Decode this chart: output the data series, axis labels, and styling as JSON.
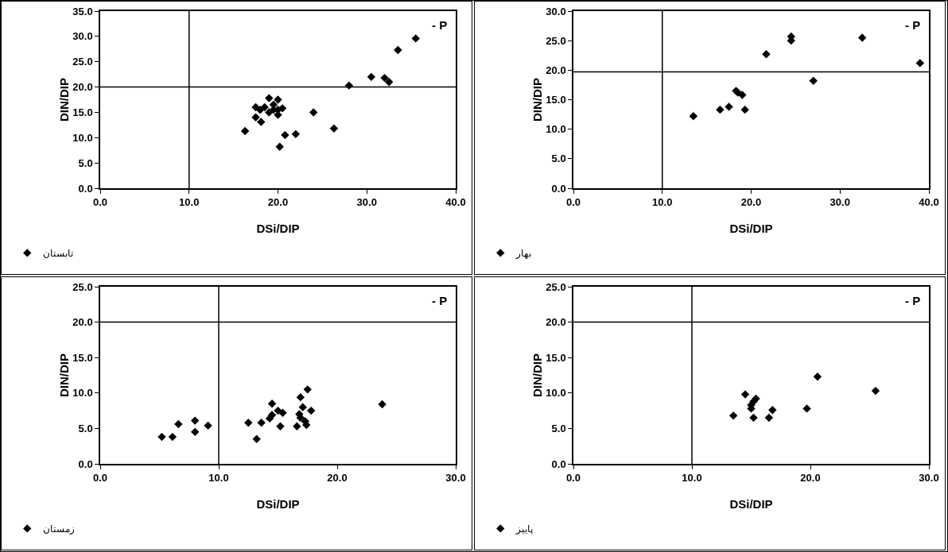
{
  "chart_data": [
    {
      "type": "scatter",
      "xlabel": "DSi/DIP",
      "ylabel": "DIN/DIP",
      "annotations": [
        "- P"
      ],
      "legend": "bottom left",
      "marker": "diamond",
      "grid": false,
      "xlim": [
        0,
        40
      ],
      "xticks": [
        {
          "value": 0,
          "label": "0.0"
        },
        {
          "value": 10,
          "label": "10.0"
        },
        {
          "value": 20,
          "label": "20.0"
        },
        {
          "value": 30,
          "label": "30.0"
        },
        {
          "value": 40,
          "label": "40.0"
        }
      ],
      "ylim": [
        0,
        35
      ],
      "yticks": [
        {
          "value": 0,
          "label": "0.0"
        },
        {
          "value": 5,
          "label": "5.0"
        },
        {
          "value": 10,
          "label": "10.0"
        },
        {
          "value": 15,
          "label": "15.0"
        },
        {
          "value": 20,
          "label": "20.0"
        },
        {
          "value": 25,
          "label": "25.0"
        },
        {
          "value": 30,
          "label": "30.0"
        },
        {
          "value": 35,
          "label": "35.0"
        }
      ],
      "ref_lines": [
        {
          "axis": "x",
          "value": 10,
          "color": "#000000"
        },
        {
          "axis": "y",
          "value": 20,
          "color": "#000000"
        }
      ],
      "series": [
        {
          "name": "تابستان",
          "color": "#000000",
          "x": [
            16.3,
            17.5,
            18.1,
            17.5,
            18,
            18.5,
            19,
            19,
            19.5,
            19.5,
            20,
            20,
            20,
            20.5,
            20.2,
            20.8,
            22,
            24,
            26.3,
            28,
            30.5,
            32,
            32.5,
            33.5,
            35.5
          ],
          "values": [
            11.3,
            14,
            13.1,
            16,
            15.5,
            16,
            15,
            17.8,
            15.5,
            16.5,
            17.5,
            15.5,
            14.5,
            15.8,
            8.2,
            10.5,
            10.7,
            15,
            11.8,
            20.3,
            22,
            21.8,
            21,
            27.3,
            29.6
          ]
        }
      ]
    },
    {
      "type": "scatter",
      "xlabel": "DSi/DIP",
      "ylabel": "DIN/DIP",
      "annotations": [
        "- P"
      ],
      "legend": "bottom left",
      "marker": "diamond",
      "grid": false,
      "xlim": [
        0,
        40
      ],
      "xticks": [
        {
          "value": 0,
          "label": "0.0"
        },
        {
          "value": 10,
          "label": "10.0"
        },
        {
          "value": 20,
          "label": "20.0"
        },
        {
          "value": 30,
          "label": "30.0"
        },
        {
          "value": 40,
          "label": "40.0"
        }
      ],
      "ylim": [
        0,
        30
      ],
      "yticks": [
        {
          "value": 0,
          "label": "0.0"
        },
        {
          "value": 5,
          "label": "5.0"
        },
        {
          "value": 10,
          "label": "10.0"
        },
        {
          "value": 15,
          "label": "15.0"
        },
        {
          "value": 20,
          "label": "20.0"
        },
        {
          "value": 25,
          "label": "25.0"
        },
        {
          "value": 30,
          "label": "30.0"
        }
      ],
      "ref_lines": [
        {
          "axis": "x",
          "value": 10,
          "color": "#000000"
        },
        {
          "axis": "y",
          "value": 19.7,
          "color": "#000000"
        }
      ],
      "series": [
        {
          "name": "بهار",
          "color": "#000000",
          "x": [
            13.5,
            16.5,
            17.5,
            18.3,
            18.5,
            19,
            19.3,
            21.7,
            24.5,
            24.5,
            27,
            32.5,
            39
          ],
          "values": [
            12.2,
            13.3,
            13.8,
            16.5,
            16.2,
            15.8,
            13.3,
            22.7,
            25,
            25.7,
            18.2,
            25.5,
            21.2
          ]
        }
      ]
    },
    {
      "type": "scatter",
      "xlabel": "DSi/DIP",
      "ylabel": "DIN/DIP",
      "annotations": [
        "- P"
      ],
      "legend": "bottom left",
      "marker": "diamond",
      "grid": false,
      "xlim": [
        0,
        30
      ],
      "xticks": [
        {
          "value": 0,
          "label": "0.0"
        },
        {
          "value": 10,
          "label": "10.0"
        },
        {
          "value": 20,
          "label": "20.0"
        },
        {
          "value": 30,
          "label": "30.0"
        }
      ],
      "ylim": [
        0,
        25
      ],
      "yticks": [
        {
          "value": 0,
          "label": "0.0"
        },
        {
          "value": 5,
          "label": "5.0"
        },
        {
          "value": 10,
          "label": "10.0"
        },
        {
          "value": 15,
          "label": "15.0"
        },
        {
          "value": 20,
          "label": "20.0"
        },
        {
          "value": 25,
          "label": "25.0"
        }
      ],
      "ref_lines": [
        {
          "axis": "x",
          "value": 10,
          "color": "#000000"
        },
        {
          "axis": "y",
          "value": 20,
          "color": "#000000"
        }
      ],
      "series": [
        {
          "name": "زمستان",
          "color": "#000000",
          "x": [
            5.2,
            6.1,
            6.6,
            8,
            8,
            9.1,
            12.5,
            13.2,
            13.6,
            14.3,
            14.5,
            14.5,
            15,
            15.2,
            15.4,
            16.6,
            16.8,
            16.9,
            16.9,
            17.1,
            17.5,
            17.3,
            17.4,
            17.8,
            23.8
          ],
          "values": [
            3.8,
            3.8,
            5.6,
            6.1,
            4.5,
            5.4,
            5.8,
            3.5,
            5.8,
            6.4,
            6.9,
            8.5,
            7.5,
            5.3,
            7.2,
            5.3,
            7,
            6.5,
            9.4,
            8,
            10.5,
            6,
            5.5,
            7.5,
            8.4
          ]
        }
      ]
    },
    {
      "type": "scatter",
      "xlabel": "DSi/DIP",
      "ylabel": "DIN/DIP",
      "annotations": [
        "- P"
      ],
      "legend": "bottom left",
      "marker": "diamond",
      "grid": false,
      "xlim": [
        0,
        30
      ],
      "xticks": [
        {
          "value": 0,
          "label": "0.0"
        },
        {
          "value": 10,
          "label": "10.0"
        },
        {
          "value": 20,
          "label": "20.0"
        },
        {
          "value": 30,
          "label": "30.0"
        }
      ],
      "ylim": [
        0,
        25
      ],
      "yticks": [
        {
          "value": 0,
          "label": "0.0"
        },
        {
          "value": 5,
          "label": "5.0"
        },
        {
          "value": 10,
          "label": "10.0"
        },
        {
          "value": 15,
          "label": "15.0"
        },
        {
          "value": 20,
          "label": "20.0"
        },
        {
          "value": 25,
          "label": "25.0"
        }
      ],
      "ref_lines": [
        {
          "axis": "x",
          "value": 10,
          "color": "#000000"
        },
        {
          "axis": "y",
          "value": 20,
          "color": "#000000"
        }
      ],
      "series": [
        {
          "name": "پاییز",
          "color": "#000000",
          "x": [
            13.5,
            14.5,
            15,
            15,
            15.2,
            15.2,
            15.4,
            16.5,
            16.8,
            19.7,
            20.6,
            25.5
          ],
          "values": [
            6.8,
            9.8,
            7.8,
            8.3,
            6.5,
            8.8,
            9.2,
            6.5,
            7.6,
            7.8,
            12.3,
            10.3
          ]
        }
      ]
    }
  ]
}
